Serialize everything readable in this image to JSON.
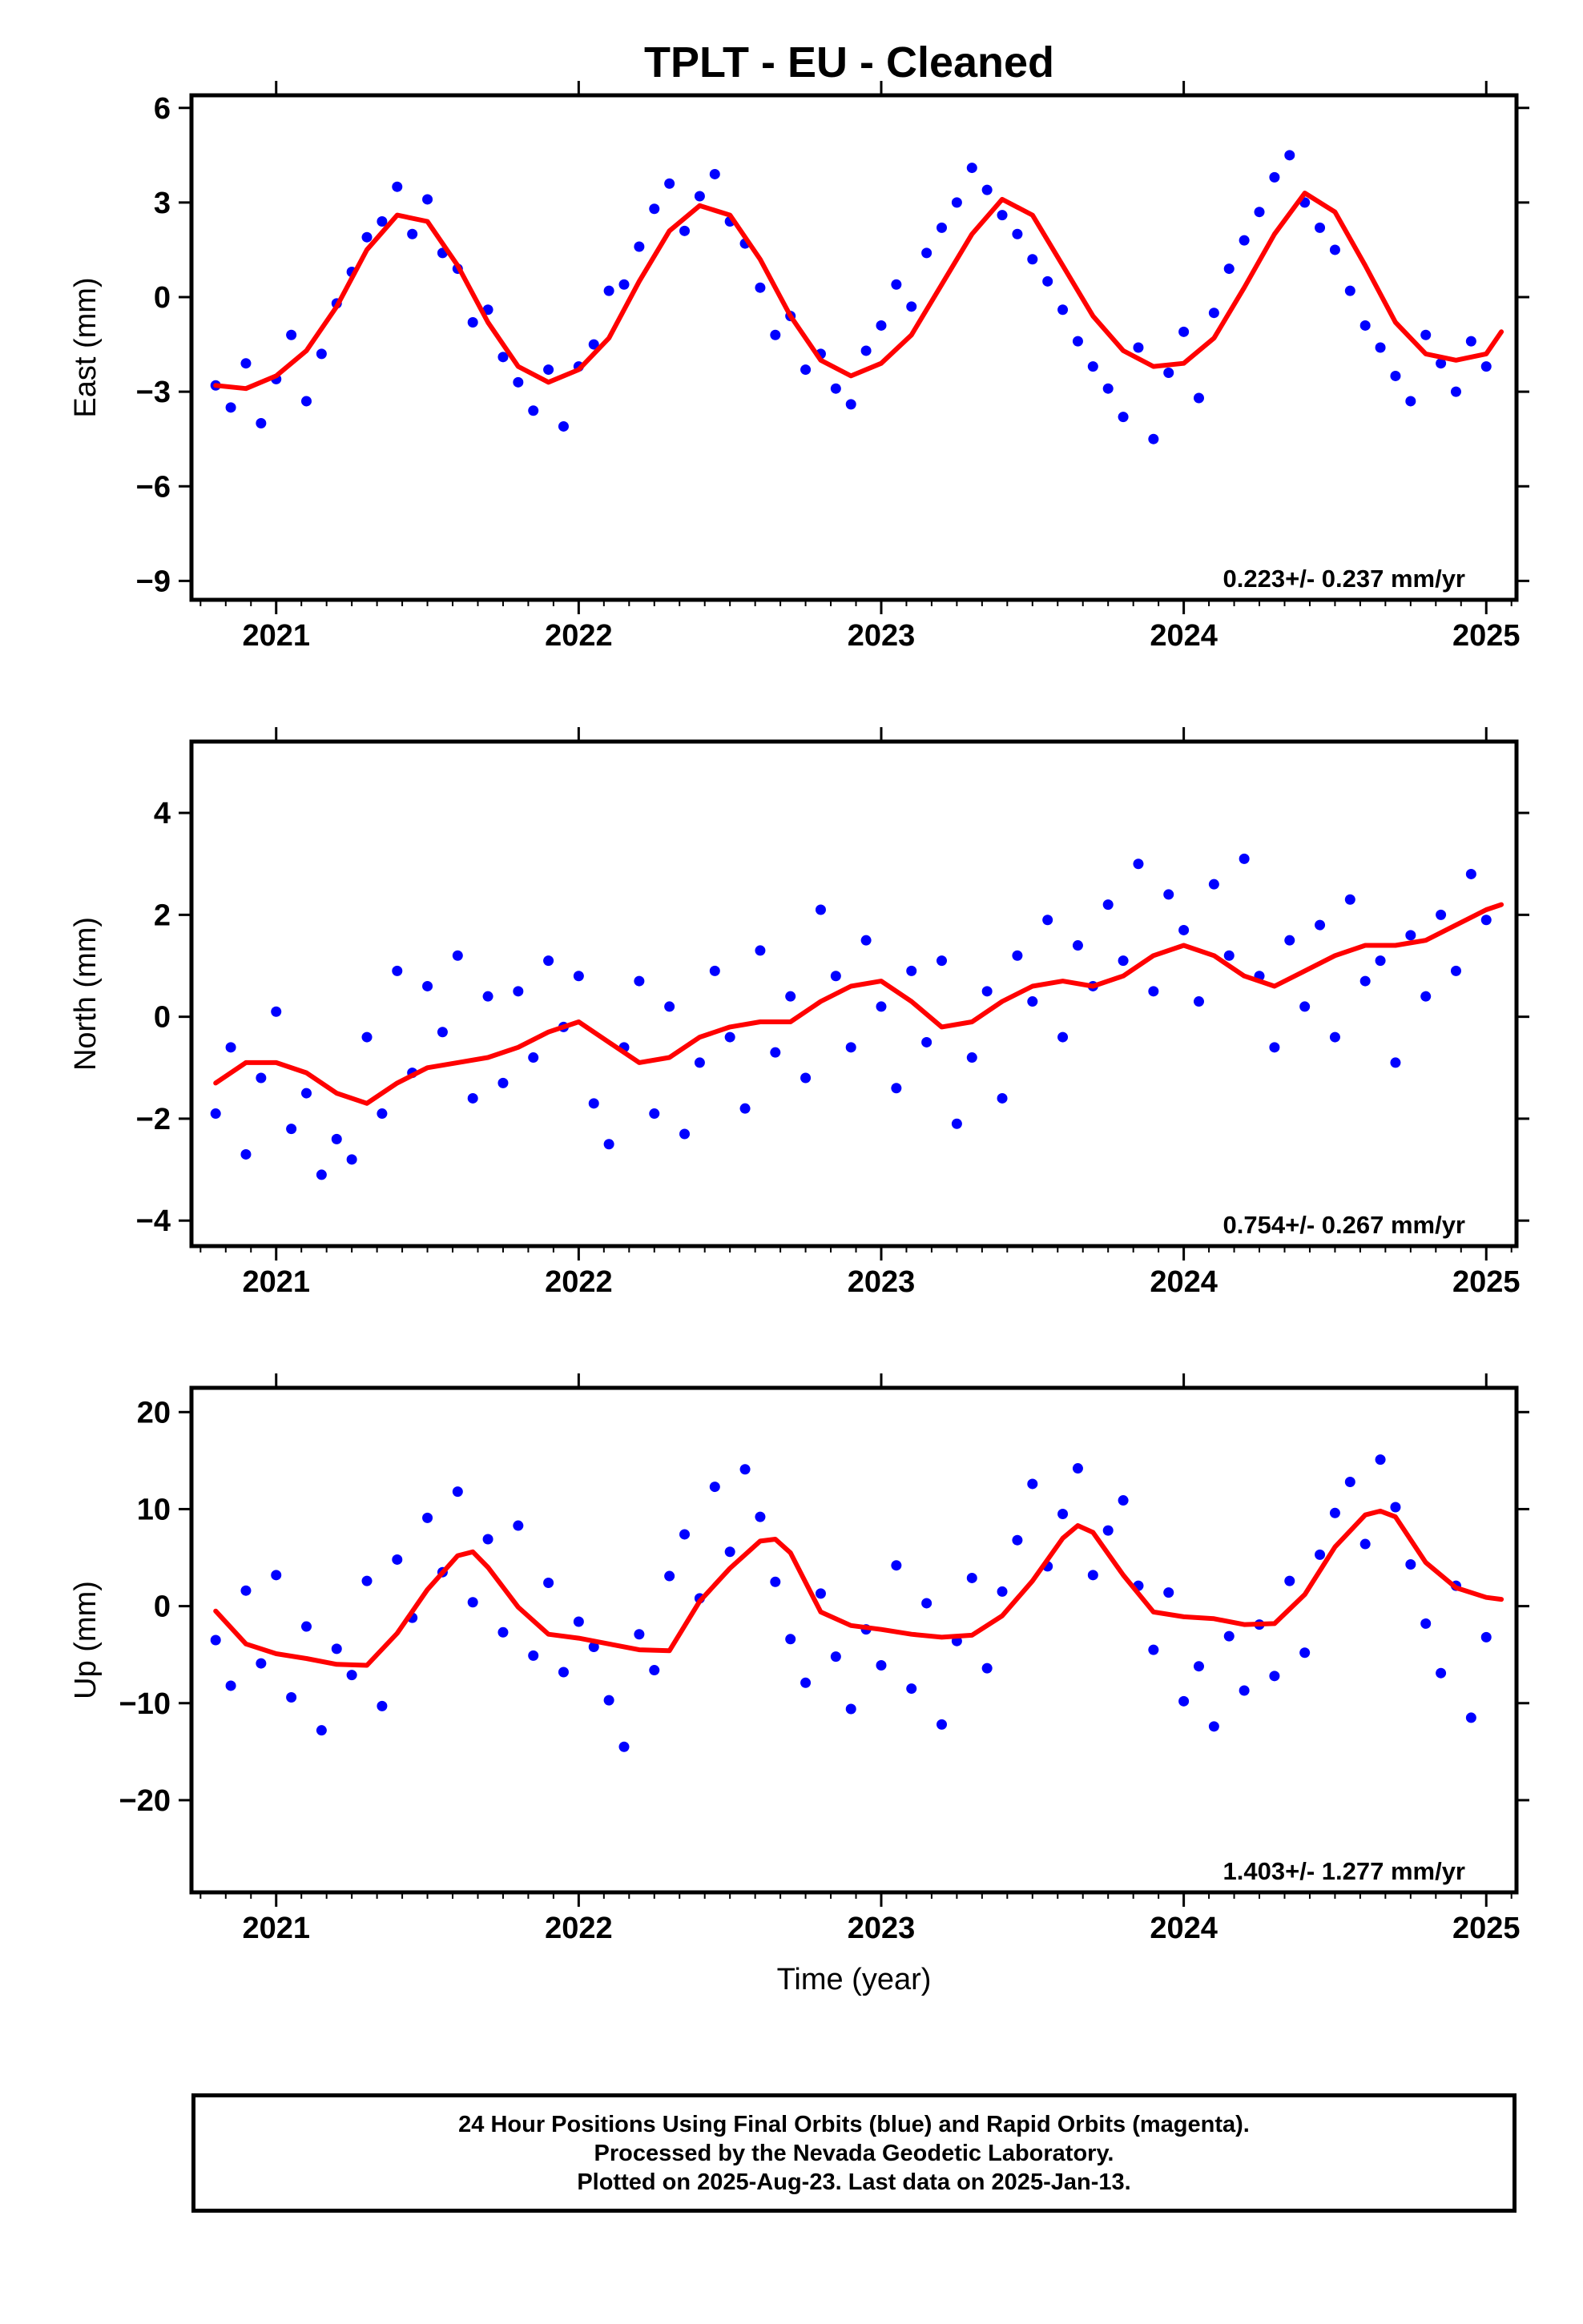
{
  "title": "TPLT  - EU - Cleaned",
  "xlabel": "Time (year)",
  "footer": {
    "lines": [
      "24 Hour Positions Using Final Orbits (blue) and Rapid Orbits (magenta).",
      "Processed by the Nevada Geodetic Laboratory.",
      "Plotted on 2025-Aug-23. Last data on 2025-Jan-13."
    ]
  },
  "colors": {
    "points": "#0000ff",
    "fit": "#ff0000",
    "frame": "#000000"
  },
  "chart_data": [
    {
      "type": "scatter",
      "ylabel": "East (mm)",
      "rate_label": "0.223+/- 0.237 mm/yr",
      "xlim": [
        2020.72,
        2025.1
      ],
      "ylim": [
        -9.6,
        6.4
      ],
      "xticks": [
        2021,
        2022,
        2023,
        2024,
        2025
      ],
      "yticks": [
        -9,
        -6,
        -3,
        0,
        3,
        6
      ],
      "series": [
        {
          "role": "points",
          "x": [
            2020.8,
            2020.85,
            2020.9,
            2020.95,
            2021.0,
            2021.05,
            2021.1,
            2021.15,
            2021.2,
            2021.25,
            2021.3,
            2021.35,
            2021.4,
            2021.45,
            2021.5,
            2021.55,
            2021.6,
            2021.65,
            2021.7,
            2021.75,
            2021.8,
            2021.85,
            2021.9,
            2021.95,
            2022.0,
            2022.05,
            2022.1,
            2022.15,
            2022.2,
            2022.25,
            2022.3,
            2022.35,
            2022.4,
            2022.45,
            2022.5,
            2022.55,
            2022.6,
            2022.65,
            2022.7,
            2022.75,
            2022.8,
            2022.85,
            2022.9,
            2022.95,
            2023.0,
            2023.05,
            2023.1,
            2023.15,
            2023.2,
            2023.25,
            2023.3,
            2023.35,
            2023.4,
            2023.45,
            2023.5,
            2023.55,
            2023.6,
            2023.65,
            2023.7,
            2023.75,
            2023.8,
            2023.85,
            2023.9,
            2023.95,
            2024.0,
            2024.05,
            2024.1,
            2024.15,
            2024.2,
            2024.25,
            2024.3,
            2024.35,
            2024.4,
            2024.45,
            2024.5,
            2024.55,
            2024.6,
            2024.65,
            2024.7,
            2024.75,
            2024.8,
            2024.85,
            2024.9,
            2024.95,
            2025.0
          ],
          "values": [
            -2.8,
            -3.5,
            -2.1,
            -4.0,
            -2.6,
            -1.2,
            -3.3,
            -1.8,
            -0.2,
            0.8,
            1.9,
            2.4,
            3.5,
            2.0,
            3.1,
            1.4,
            0.9,
            -0.8,
            -0.4,
            -1.9,
            -2.7,
            -3.6,
            -2.3,
            -4.1,
            -2.2,
            -1.5,
            0.2,
            0.4,
            1.6,
            2.8,
            3.6,
            2.1,
            3.2,
            3.9,
            2.4,
            1.7,
            0.3,
            -1.2,
            -0.6,
            -2.3,
            -1.8,
            -2.9,
            -3.4,
            -1.7,
            -0.9,
            0.4,
            -0.3,
            1.4,
            2.2,
            3.0,
            4.1,
            3.4,
            2.6,
            2.0,
            1.2,
            0.5,
            -0.4,
            -1.4,
            -2.2,
            -2.9,
            -3.8,
            -1.6,
            -4.5,
            -2.4,
            -1.1,
            -3.2,
            -0.5,
            0.9,
            1.8,
            2.7,
            3.8,
            4.5,
            3.0,
            2.2,
            1.5,
            0.2,
            -0.9,
            -1.6,
            -2.5,
            -3.3,
            -1.2,
            -2.1,
            -3.0,
            -1.4,
            -2.2
          ]
        },
        {
          "role": "fit",
          "x": [
            2020.8,
            2020.9,
            2021.0,
            2021.1,
            2021.2,
            2021.3,
            2021.4,
            2021.5,
            2021.6,
            2021.7,
            2021.8,
            2021.9,
            2022.0,
            2022.1,
            2022.2,
            2022.3,
            2022.4,
            2022.5,
            2022.6,
            2022.7,
            2022.8,
            2022.9,
            2023.0,
            2023.1,
            2023.2,
            2023.3,
            2023.4,
            2023.5,
            2023.6,
            2023.7,
            2023.8,
            2023.9,
            2024.0,
            2024.1,
            2024.2,
            2024.3,
            2024.4,
            2024.5,
            2024.6,
            2024.7,
            2024.8,
            2024.9,
            2025.0,
            2025.05
          ],
          "values": [
            -2.8,
            -2.9,
            -2.5,
            -1.7,
            -0.3,
            1.5,
            2.6,
            2.4,
            1.0,
            -0.8,
            -2.2,
            -2.7,
            -2.3,
            -1.3,
            0.5,
            2.1,
            2.9,
            2.6,
            1.2,
            -0.6,
            -2.0,
            -2.5,
            -2.1,
            -1.2,
            0.4,
            2.0,
            3.1,
            2.6,
            1.0,
            -0.6,
            -1.7,
            -2.2,
            -2.1,
            -1.3,
            0.3,
            2.0,
            3.3,
            2.7,
            1.0,
            -0.8,
            -1.8,
            -2.0,
            -1.8,
            -1.1
          ]
        }
      ]
    },
    {
      "type": "scatter",
      "ylabel": "North (mm)",
      "rate_label": "0.754+/- 0.267 mm/yr",
      "xlim": [
        2020.72,
        2025.1
      ],
      "ylim": [
        -4.5,
        5.4
      ],
      "xticks": [
        2021,
        2022,
        2023,
        2024,
        2025
      ],
      "yticks": [
        -4,
        -2,
        0,
        2,
        4
      ],
      "series": [
        {
          "role": "points",
          "x": [
            2020.8,
            2020.85,
            2020.9,
            2020.95,
            2021.0,
            2021.05,
            2021.1,
            2021.15,
            2021.2,
            2021.25,
            2021.3,
            2021.35,
            2021.4,
            2021.45,
            2021.5,
            2021.55,
            2021.6,
            2021.65,
            2021.7,
            2021.75,
            2021.8,
            2021.85,
            2021.9,
            2021.95,
            2022.0,
            2022.05,
            2022.1,
            2022.15,
            2022.2,
            2022.25,
            2022.3,
            2022.35,
            2022.4,
            2022.45,
            2022.5,
            2022.55,
            2022.6,
            2022.65,
            2022.7,
            2022.75,
            2022.8,
            2022.85,
            2022.9,
            2022.95,
            2023.0,
            2023.05,
            2023.1,
            2023.15,
            2023.2,
            2023.25,
            2023.3,
            2023.35,
            2023.4,
            2023.45,
            2023.5,
            2023.55,
            2023.6,
            2023.65,
            2023.7,
            2023.75,
            2023.8,
            2023.85,
            2023.9,
            2023.95,
            2024.0,
            2024.05,
            2024.1,
            2024.15,
            2024.2,
            2024.25,
            2024.3,
            2024.35,
            2024.4,
            2024.45,
            2024.5,
            2024.55,
            2024.6,
            2024.65,
            2024.7,
            2024.75,
            2024.8,
            2024.85,
            2024.9,
            2024.95,
            2025.0
          ],
          "values": [
            -1.9,
            -0.6,
            -2.7,
            -1.2,
            0.1,
            -2.2,
            -1.5,
            -3.1,
            -2.4,
            -2.8,
            -0.4,
            -1.9,
            0.9,
            -1.1,
            0.6,
            -0.3,
            1.2,
            -1.6,
            0.4,
            -1.3,
            0.5,
            -0.8,
            1.1,
            -0.2,
            0.8,
            -1.7,
            -2.5,
            -0.6,
            0.7,
            -1.9,
            0.2,
            -2.3,
            -0.9,
            0.9,
            -0.4,
            -1.8,
            1.3,
            -0.7,
            0.4,
            -1.2,
            2.1,
            0.8,
            -0.6,
            1.5,
            0.2,
            -1.4,
            0.9,
            -0.5,
            1.1,
            -2.1,
            -0.8,
            0.5,
            -1.6,
            1.2,
            0.3,
            1.9,
            -0.4,
            1.4,
            0.6,
            2.2,
            1.1,
            3.0,
            0.5,
            2.4,
            1.7,
            0.3,
            2.6,
            1.2,
            3.1,
            0.8,
            -0.6,
            1.5,
            0.2,
            1.8,
            -0.4,
            2.3,
            0.7,
            1.1,
            -0.9,
            1.6,
            0.4,
            2.0,
            0.9,
            2.8,
            1.9
          ]
        },
        {
          "role": "fit",
          "x": [
            2020.8,
            2020.9,
            2021.0,
            2021.1,
            2021.2,
            2021.3,
            2021.4,
            2021.5,
            2021.6,
            2021.7,
            2021.8,
            2021.9,
            2022.0,
            2022.1,
            2022.2,
            2022.3,
            2022.4,
            2022.5,
            2022.6,
            2022.7,
            2022.8,
            2022.9,
            2023.0,
            2023.1,
            2023.2,
            2023.3,
            2023.4,
            2023.5,
            2023.6,
            2023.7,
            2023.8,
            2023.9,
            2024.0,
            2024.1,
            2024.2,
            2024.3,
            2024.4,
            2024.5,
            2024.6,
            2024.7,
            2024.8,
            2024.9,
            2025.0,
            2025.05
          ],
          "values": [
            -1.3,
            -0.9,
            -0.9,
            -1.1,
            -1.5,
            -1.7,
            -1.3,
            -1.0,
            -0.9,
            -0.8,
            -0.6,
            -0.3,
            -0.1,
            -0.5,
            -0.9,
            -0.8,
            -0.4,
            -0.2,
            -0.1,
            -0.1,
            0.3,
            0.6,
            0.7,
            0.3,
            -0.2,
            -0.1,
            0.3,
            0.6,
            0.7,
            0.6,
            0.8,
            1.2,
            1.4,
            1.2,
            0.8,
            0.6,
            0.9,
            1.2,
            1.4,
            1.4,
            1.5,
            1.8,
            2.1,
            2.2
          ]
        }
      ]
    },
    {
      "type": "scatter",
      "ylabel": "Up (mm)",
      "rate_label": "1.403+/- 1.277 mm/yr",
      "xlim": [
        2020.72,
        2025.1
      ],
      "ylim": [
        -29.5,
        22.5
      ],
      "xticks": [
        2021,
        2022,
        2023,
        2024,
        2025
      ],
      "yticks": [
        -20,
        -10,
        0,
        10,
        20
      ],
      "series": [
        {
          "role": "points",
          "x": [
            2020.8,
            2020.85,
            2020.9,
            2020.95,
            2021.0,
            2021.05,
            2021.1,
            2021.15,
            2021.2,
            2021.25,
            2021.3,
            2021.35,
            2021.4,
            2021.45,
            2021.5,
            2021.55,
            2021.6,
            2021.65,
            2021.7,
            2021.75,
            2021.8,
            2021.85,
            2021.9,
            2021.95,
            2022.0,
            2022.05,
            2022.1,
            2022.15,
            2022.2,
            2022.25,
            2022.3,
            2022.35,
            2022.4,
            2022.45,
            2022.5,
            2022.55,
            2022.6,
            2022.65,
            2022.7,
            2022.75,
            2022.8,
            2022.85,
            2022.9,
            2022.95,
            2023.0,
            2023.05,
            2023.1,
            2023.15,
            2023.2,
            2023.25,
            2023.3,
            2023.35,
            2023.4,
            2023.45,
            2023.5,
            2023.55,
            2023.6,
            2023.65,
            2023.7,
            2023.75,
            2023.8,
            2023.85,
            2023.9,
            2023.95,
            2024.0,
            2024.05,
            2024.1,
            2024.15,
            2024.2,
            2024.25,
            2024.3,
            2024.35,
            2024.4,
            2024.45,
            2024.5,
            2024.55,
            2024.6,
            2024.65,
            2024.7,
            2024.75,
            2024.8,
            2024.85,
            2024.9,
            2024.95,
            2025.0
          ],
          "values": [
            -3.5,
            -8.2,
            1.6,
            -5.9,
            3.2,
            -9.4,
            -2.1,
            -12.8,
            -4.4,
            -7.1,
            2.6,
            -10.3,
            4.8,
            -1.2,
            9.1,
            3.5,
            11.8,
            0.4,
            6.9,
            -2.7,
            8.3,
            -5.1,
            2.4,
            -6.8,
            -1.6,
            -4.2,
            -9.7,
            -14.5,
            -2.9,
            -6.6,
            3.1,
            7.4,
            0.8,
            12.3,
            5.6,
            14.1,
            9.2,
            2.5,
            -3.4,
            -7.9,
            1.3,
            -5.2,
            -10.6,
            -2.4,
            -6.1,
            4.2,
            -8.5,
            0.3,
            -12.2,
            -3.6,
            2.9,
            -6.4,
            1.5,
            6.8,
            12.6,
            4.1,
            9.5,
            14.2,
            3.2,
            7.8,
            10.9,
            2.1,
            -4.5,
            1.4,
            -9.8,
            -6.2,
            -12.4,
            -3.1,
            -8.7,
            -1.9,
            -7.2,
            2.6,
            -4.8,
            5.3,
            9.6,
            12.8,
            6.4,
            15.1,
            10.2,
            4.3,
            -1.8,
            -6.9,
            2.1,
            -11.5,
            -3.2
          ]
        },
        {
          "role": "fit",
          "x": [
            2020.8,
            2020.9,
            2021.0,
            2021.1,
            2021.2,
            2021.3,
            2021.4,
            2021.5,
            2021.6,
            2021.65,
            2021.7,
            2021.8,
            2021.9,
            2022.0,
            2022.1,
            2022.2,
            2022.3,
            2022.4,
            2022.5,
            2022.6,
            2022.65,
            2022.7,
            2022.8,
            2022.9,
            2023.0,
            2023.1,
            2023.2,
            2023.3,
            2023.4,
            2023.5,
            2023.6,
            2023.65,
            2023.7,
            2023.8,
            2023.9,
            2024.0,
            2024.1,
            2024.2,
            2024.3,
            2024.4,
            2024.5,
            2024.6,
            2024.65,
            2024.7,
            2024.8,
            2024.9,
            2025.0,
            2025.05
          ],
          "values": [
            -0.5,
            -3.9,
            -4.9,
            -5.4,
            -6.0,
            -6.1,
            -2.8,
            1.7,
            5.2,
            5.6,
            4.0,
            -0.1,
            -2.9,
            -3.3,
            -3.9,
            -4.5,
            -4.6,
            0.5,
            3.9,
            6.7,
            6.9,
            5.5,
            -0.6,
            -2.0,
            -2.4,
            -2.9,
            -3.2,
            -3.0,
            -1.0,
            2.6,
            7.0,
            8.3,
            7.6,
            3.2,
            -0.6,
            -1.1,
            -1.3,
            -1.9,
            -1.8,
            1.2,
            6.1,
            9.4,
            9.8,
            9.2,
            4.5,
            1.9,
            0.9,
            0.7
          ]
        }
      ]
    }
  ]
}
